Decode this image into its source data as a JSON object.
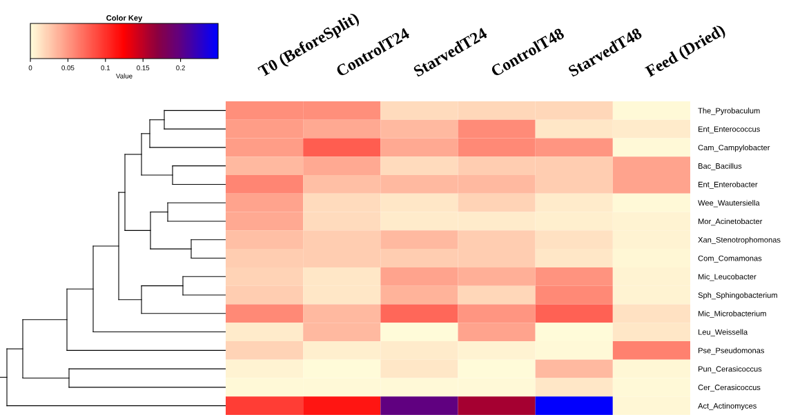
{
  "chart_data": {
    "type": "heatmap",
    "legend_title": "Color Key",
    "clabel": "Value",
    "categories": [
      "T0 (BeforeSplit)",
      "ControlT24",
      "StarvedT24",
      "ControlT48",
      "StarvedT48",
      "Feed (Dried)"
    ],
    "y_categories": [
      "The_Pyrobaculum",
      "Ent_Enterococcus",
      "Cam_Campylobacter",
      "Bac_Bacillus",
      "Ent_Enterobacter",
      "Wee_Wautersiella",
      "Mor_Acinetobacter",
      "Xan_Stenotrophomonas",
      "Com_Comamonas",
      "Mic_Leucobacter",
      "Sph_Sphingobacterium",
      "Mic_Microbacterium",
      "Leu_Weissella",
      "Pse_Pseudomonas",
      "Pun_Cerasicoccus",
      "Cer_Cerasicoccus",
      "Act_Actinomyces"
    ],
    "cells": [
      [
        0.055,
        0.055,
        0.018,
        0.02,
        0.02,
        0.003
      ],
      [
        0.048,
        0.042,
        0.035,
        0.057,
        0.012,
        0.01
      ],
      [
        0.048,
        0.08,
        0.042,
        0.058,
        0.052,
        0.003
      ],
      [
        0.035,
        0.042,
        0.018,
        0.025,
        0.025,
        0.045
      ],
      [
        0.06,
        0.032,
        0.035,
        0.035,
        0.025,
        0.045
      ],
      [
        0.045,
        0.018,
        0.012,
        0.022,
        0.01,
        0.003
      ],
      [
        0.042,
        0.018,
        0.01,
        0.01,
        0.008,
        0.006
      ],
      [
        0.032,
        0.025,
        0.035,
        0.025,
        0.015,
        0.006
      ],
      [
        0.025,
        0.025,
        0.025,
        0.025,
        0.012,
        0.004
      ],
      [
        0.022,
        0.012,
        0.045,
        0.04,
        0.053,
        0.006
      ],
      [
        0.025,
        0.012,
        0.038,
        0.02,
        0.058,
        0.006
      ],
      [
        0.058,
        0.035,
        0.075,
        0.052,
        0.078,
        0.015
      ],
      [
        0.01,
        0.035,
        0.002,
        0.045,
        0.002,
        0.012
      ],
      [
        0.022,
        0.008,
        0.01,
        0.006,
        0.003,
        0.062
      ],
      [
        0.006,
        0.002,
        0.012,
        0.002,
        0.035,
        0.004
      ],
      [
        0.003,
        0.003,
        0.003,
        0.003,
        0.012,
        0.003
      ],
      [
        0.095,
        0.115,
        0.2,
        0.16,
        0.249,
        0.004
      ]
    ],
    "colors": [
      "#ffffdc",
      "#ff0000",
      "#8b0040",
      "#600080",
      "#0000ff"
    ],
    "clim": [
      0,
      0.25
    ],
    "cticks": [
      0,
      0.05,
      0.1,
      0.15,
      0.2
    ]
  }
}
